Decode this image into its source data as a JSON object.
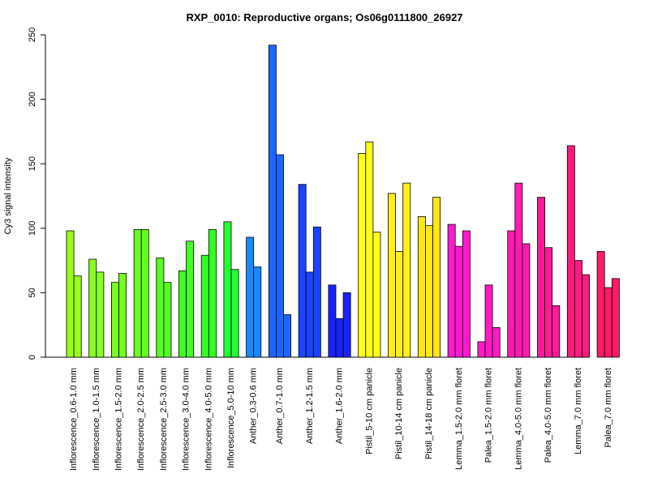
{
  "chart_data": {
    "type": "bar",
    "title": "RXP_0010: Reproductive organs; Os06g0111800_26927",
    "xlabel": "",
    "ylabel": "Cy3 signal intensity",
    "ylim": [
      0,
      250
    ],
    "yticks": [
      0,
      50,
      100,
      150,
      200,
      250
    ],
    "grid": false,
    "groups": [
      {
        "label": "Inflorescence_0.6-1.0 mm",
        "color": "#99ff1a",
        "values": [
          98,
          63
        ]
      },
      {
        "label": "Inflorescence_1.0-1.5 mm",
        "color": "#88ff22",
        "values": [
          76,
          66
        ]
      },
      {
        "label": "Inflorescence_1.5-2.0 mm",
        "color": "#77ff22",
        "values": [
          58,
          65
        ]
      },
      {
        "label": "Inflorescence_2.0-2.5 mm",
        "color": "#66ff22",
        "values": [
          99,
          99
        ]
      },
      {
        "label": "Inflorescence_2.5-3.0 mm",
        "color": "#55ff22",
        "values": [
          77,
          58
        ]
      },
      {
        "label": "Inflorescence_3.0-4.0 mm",
        "color": "#44ff22",
        "values": [
          67,
          90
        ]
      },
      {
        "label": "Inflorescence_4.0-5.0 mm",
        "color": "#33ff22",
        "values": [
          79,
          99
        ]
      },
      {
        "label": "Inflorescence_5.0-10 mm",
        "color": "#22ff33",
        "values": [
          105,
          68
        ]
      },
      {
        "label": "Anther_0.3-0.6 mm",
        "color": "#1a88ff",
        "values": [
          93,
          70
        ]
      },
      {
        "label": "Anther_0.7-1.0 mm",
        "color": "#1a66ff",
        "values": [
          242,
          157,
          33
        ]
      },
      {
        "label": "Anther_1.2-1.5 mm",
        "color": "#1a44ff",
        "values": [
          134,
          66,
          101
        ]
      },
      {
        "label": "Anther_1.6-2.0 mm",
        "color": "#1a22ff",
        "values": [
          56,
          30,
          50
        ]
      },
      {
        "label": "Pistil_5-10 cm panicle",
        "color": "#ffff1a",
        "values": [
          158,
          167,
          97
        ]
      },
      {
        "label": "Pistil_10-14 cm panicle",
        "color": "#ffee1a",
        "values": [
          127,
          82,
          135
        ]
      },
      {
        "label": "Pistil_14-18 cm panicle",
        "color": "#ffe61a",
        "values": [
          109,
          102,
          124
        ]
      },
      {
        "label": "Lemma_1.5-2.0 mm floret",
        "color": "#ff1ad1",
        "values": [
          103,
          86,
          98
        ]
      },
      {
        "label": "Palea_1.5-2.0 mm floret",
        "color": "#ff1ac4",
        "values": [
          12,
          56,
          23
        ]
      },
      {
        "label": "Lemma_4.0-5.0 mm floret",
        "color": "#ff1ab0",
        "values": [
          98,
          135,
          88
        ]
      },
      {
        "label": "Palea_4.0-5.0 mm floret",
        "color": "#ff1a99",
        "values": [
          124,
          85,
          40
        ]
      },
      {
        "label": "Lemma_7.0 mm floret",
        "color": "#ff1a80",
        "values": [
          164,
          75,
          64
        ]
      },
      {
        "label": "Palea_7.0 mm floret",
        "color": "#ff1a6a",
        "values": [
          82,
          54,
          61
        ]
      }
    ]
  }
}
